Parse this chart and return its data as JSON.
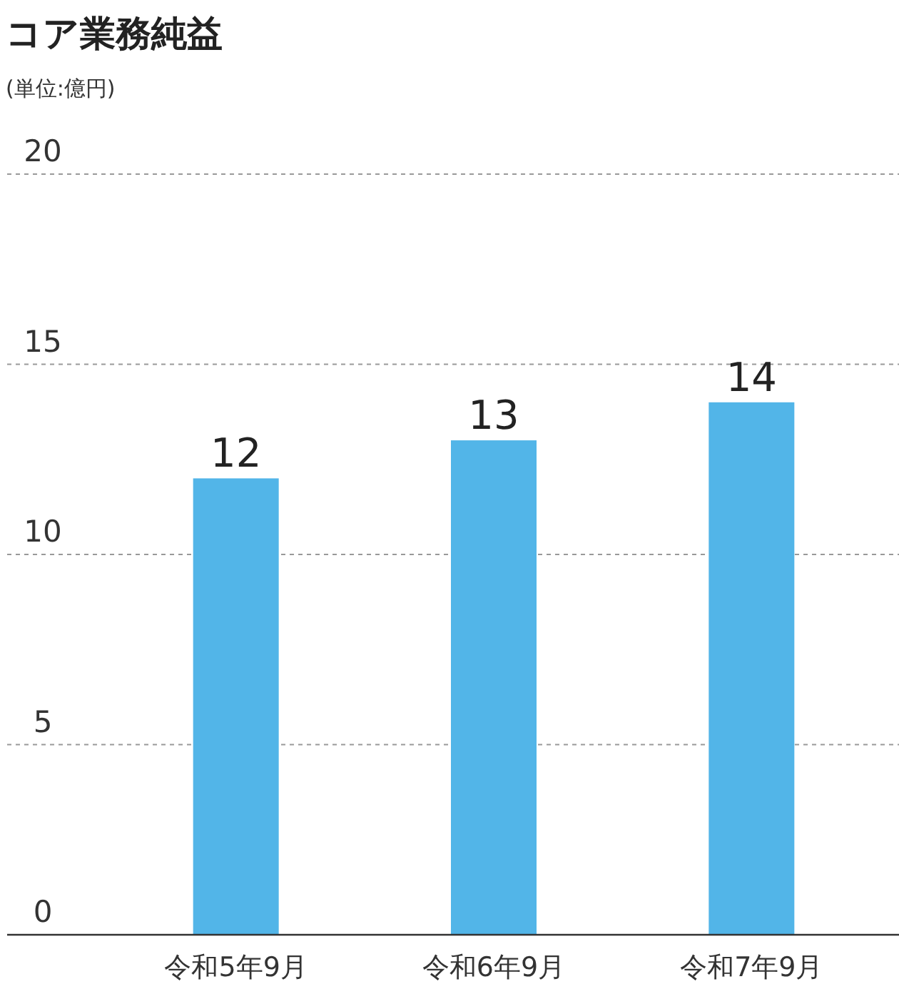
{
  "chart_data": {
    "type": "bar",
    "title": "コア業務純益",
    "ylabel": "(単位:億円)",
    "categories": [
      "令和5年9月",
      "令和6年9月",
      "令和7年9月"
    ],
    "values": [
      12,
      13,
      14
    ],
    "color": "#52b5e8",
    "ylim": [
      0,
      20
    ],
    "yticks": [
      0,
      5,
      10,
      15,
      20
    ],
    "grid": "y",
    "data_labels": true
  }
}
